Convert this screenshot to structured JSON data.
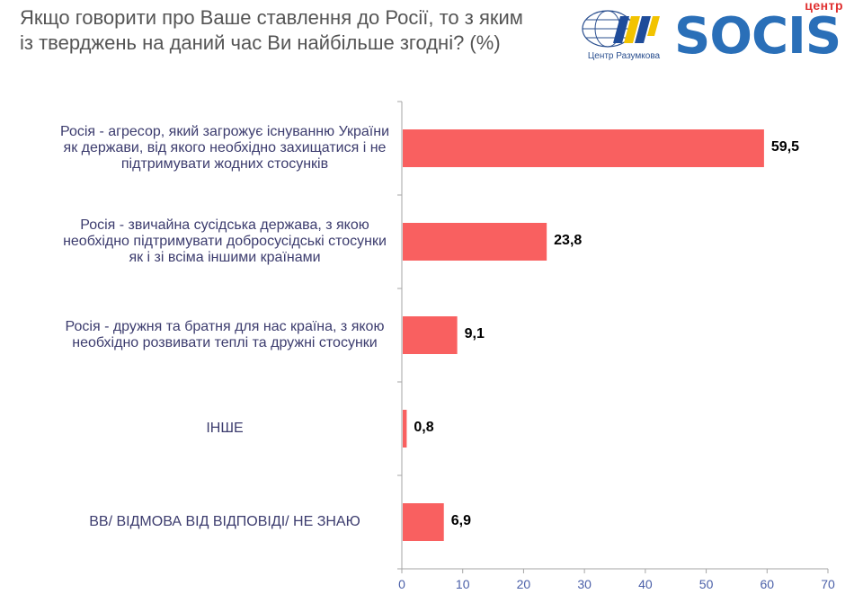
{
  "header": {
    "title": "Якщо говорити про Ваше ставлення до Росії, то з яким із тверджень на даний час Ви найбільше згодні? (%)"
  },
  "logos": {
    "razumkov_caption": "Центр Разумкова",
    "socis_top": "центр",
    "socis_word": "SOCIS"
  },
  "colors": {
    "bar": "#f96060",
    "axis": "#a6a6a6",
    "label": "#3c3c6e",
    "tick": "#4a5fa8"
  },
  "chart_data": {
    "type": "bar",
    "orientation": "horizontal",
    "title": "Якщо говорити про Ваше ставлення до Росії, то з яким із тверджень на даний час Ви найбільше згодні? (%)",
    "categories": [
      "Росія - агресор, який загрожує існуванню України як держави, від якого необхідно захищатися  і не підтримувати  жодних стосунків",
      "Росія - звичайна сусідська держава, з якою необхідно підтримувати  добросусідські стосунки як і  зі всіма іншими країнами",
      "Росія - дружня та братня для нас країна, з якою необхідно розвивати теплі та дружні стосунки",
      "ІНШЕ",
      "ВВ/ ВІДМОВА ВІД ВІДПОВІДІ/ НЕ ЗНАЮ"
    ],
    "values": [
      59.5,
      23.8,
      9.1,
      0.8,
      6.9
    ],
    "value_labels": [
      "59,5",
      "23,8",
      "9,1",
      "0,8",
      "6,9"
    ],
    "xlim": [
      0,
      70
    ],
    "xticks": [
      "0",
      "10",
      "20",
      "30",
      "40",
      "50",
      "60",
      "70"
    ],
    "xlabel": "",
    "ylabel": "",
    "grid": false,
    "legend": "none"
  }
}
